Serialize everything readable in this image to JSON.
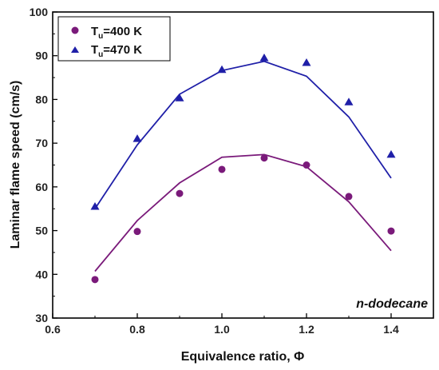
{
  "chart_data": {
    "type": "scatter",
    "title": "",
    "xlabel": "Equivalence ratio, Φ",
    "ylabel": "Laminar flame speed (cm/s)",
    "xlim": [
      0.6,
      1.5
    ],
    "ylim": [
      30,
      100
    ],
    "xticks": [
      "0.6",
      "0.8",
      "1.0",
      "1.2",
      "1.4"
    ],
    "yticks": [
      "30",
      "40",
      "50",
      "60",
      "70",
      "80",
      "90",
      "100"
    ],
    "annotation": "n-dodecane",
    "legend_position": "top-left",
    "series": [
      {
        "name": "Tu=400 K",
        "legend_main": "T",
        "legend_sub": "u",
        "legend_rest": "=400 K",
        "marker": "circle",
        "color": "#7a1a7a",
        "x": [
          0.7,
          0.8,
          0.9,
          1.0,
          1.1,
          1.2,
          1.3,
          1.4
        ],
        "points": [
          38.8,
          49.8,
          58.5,
          64.0,
          66.6,
          65.0,
          57.8,
          49.9
        ],
        "line": [
          40.7,
          52.3,
          60.9,
          66.8,
          67.4,
          64.6,
          56.6,
          45.4
        ]
      },
      {
        "name": "Tu=470 K",
        "legend_main": "T",
        "legend_sub": "u",
        "legend_rest": "=470 K",
        "marker": "triangle",
        "color": "#1f1fa8",
        "x": [
          0.7,
          0.8,
          0.9,
          1.0,
          1.1,
          1.2,
          1.3,
          1.4
        ],
        "points": [
          55.5,
          71.0,
          80.3,
          86.8,
          89.5,
          88.4,
          79.4,
          67.4
        ],
        "line": [
          55.0,
          69.6,
          81.2,
          86.6,
          88.7,
          85.3,
          76.0,
          62.0
        ]
      }
    ]
  }
}
